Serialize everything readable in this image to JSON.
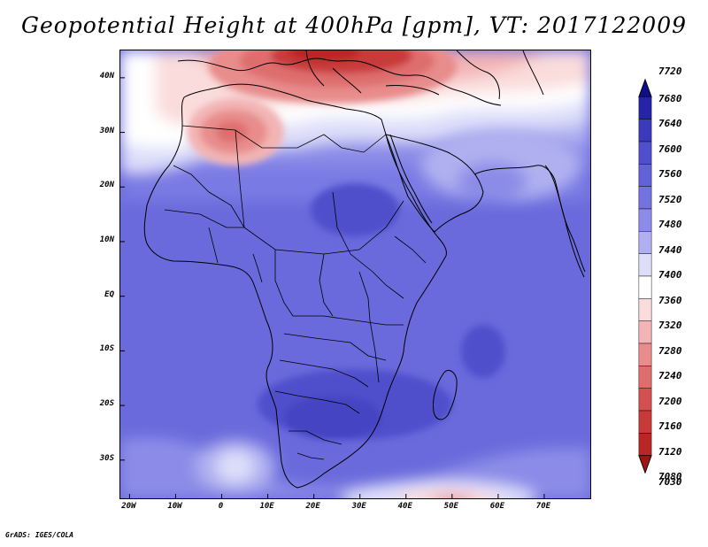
{
  "title": "Geopotential Height at 400hPa [gpm], VT: 2017122009",
  "credit": "GrADS: IGES/COLA",
  "map": {
    "lat_range": [
      -37,
      45
    ],
    "lon_range": [
      -22,
      80
    ],
    "lat_ticks": [
      "40N",
      "30N",
      "20N",
      "10N",
      "EQ",
      "10S",
      "20S",
      "30S"
    ],
    "lat_tick_values": [
      40,
      30,
      20,
      10,
      0,
      -10,
      -20,
      -30
    ],
    "lon_ticks": [
      "20W",
      "10W",
      "0",
      "10E",
      "20E",
      "30E",
      "40E",
      "50E",
      "60E",
      "70E"
    ],
    "lon_tick_values": [
      -20,
      -10,
      0,
      10,
      20,
      30,
      40,
      50,
      60,
      70
    ]
  },
  "colorbar": {
    "levels": [
      "7720",
      "7680",
      "7640",
      "7600",
      "7560",
      "7520",
      "7480",
      "7440",
      "7400",
      "7360",
      "7320",
      "7280",
      "7240",
      "7200",
      "7160",
      "7120",
      "7080",
      "7030"
    ],
    "colors": [
      "#0f0f8c",
      "#2424a8",
      "#3a3abc",
      "#4f4fcc",
      "#6161d8",
      "#7373e0",
      "#8c8ce8",
      "#b0b0f0",
      "#dedefa",
      "#ffffff",
      "#fadcdc",
      "#f2b4b4",
      "#e88c8c",
      "#de6e6e",
      "#d45050",
      "#c83a3a",
      "#b82626",
      "#a01414"
    ]
  }
}
